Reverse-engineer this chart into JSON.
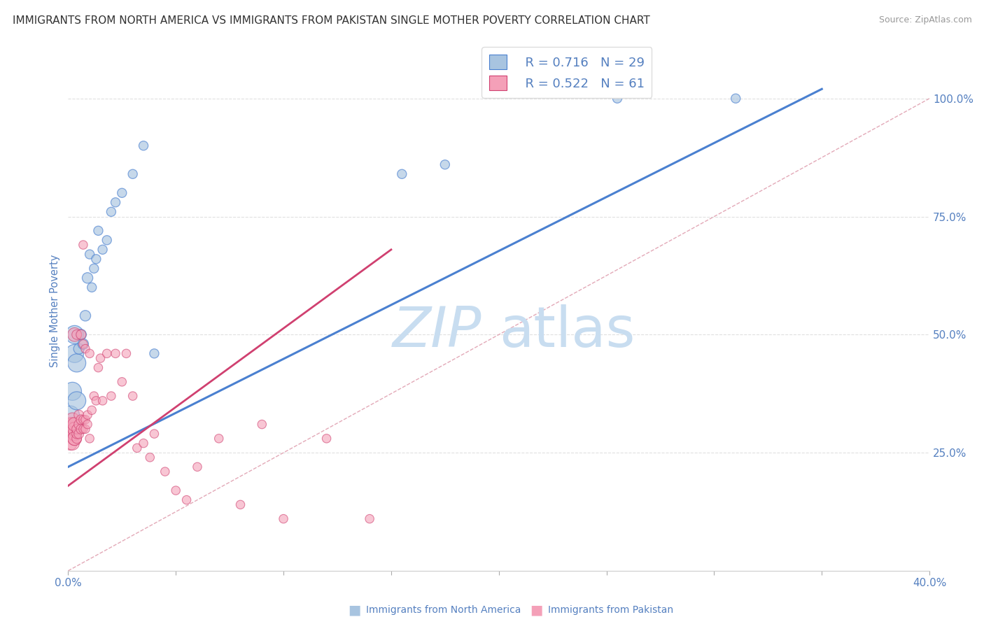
{
  "title": "IMMIGRANTS FROM NORTH AMERICA VS IMMIGRANTS FROM PAKISTAN SINGLE MOTHER POVERTY CORRELATION CHART",
  "source": "Source: ZipAtlas.com",
  "ylabel": "Single Mother Poverty",
  "y_tick_labels": [
    "100.0%",
    "75.0%",
    "50.0%",
    "25.0%"
  ],
  "y_tick_values": [
    1.0,
    0.75,
    0.5,
    0.25
  ],
  "x_lim": [
    0.0,
    0.4
  ],
  "y_lim": [
    0.0,
    1.1
  ],
  "legend_r1": "R = 0.716",
  "legend_n1": "N = 29",
  "legend_r2": "R = 0.522",
  "legend_n2": "N = 61",
  "blue_color": "#a8c4e0",
  "pink_color": "#f4a0b8",
  "blue_line_color": "#4a80d0",
  "pink_line_color": "#d04070",
  "diag_line_color": "#e0a0b0",
  "watermark_zip": "ZIP",
  "watermark_atlas": "atlas",
  "watermark_color_zip": "#c8ddf0",
  "watermark_color_atlas": "#c8ddf0",
  "bg_color": "#ffffff",
  "grid_color": "#e0e0e0",
  "tick_color": "#5580c0",
  "title_color": "#333333",
  "title_fontsize": 11.0,
  "blue_scatter_x": [
    0.001,
    0.001,
    0.002,
    0.003,
    0.003,
    0.004,
    0.004,
    0.005,
    0.006,
    0.007,
    0.008,
    0.009,
    0.01,
    0.011,
    0.012,
    0.013,
    0.014,
    0.016,
    0.018,
    0.02,
    0.022,
    0.025,
    0.03,
    0.035,
    0.04,
    0.155,
    0.175,
    0.255,
    0.31
  ],
  "blue_scatter_y": [
    0.3,
    0.33,
    0.38,
    0.46,
    0.5,
    0.36,
    0.44,
    0.47,
    0.5,
    0.48,
    0.54,
    0.62,
    0.67,
    0.6,
    0.64,
    0.66,
    0.72,
    0.68,
    0.7,
    0.76,
    0.78,
    0.8,
    0.84,
    0.9,
    0.46,
    0.84,
    0.86,
    1.0,
    1.0
  ],
  "pink_scatter_x": [
    0.001,
    0.001,
    0.001,
    0.002,
    0.002,
    0.002,
    0.002,
    0.002,
    0.003,
    0.003,
    0.003,
    0.003,
    0.003,
    0.003,
    0.004,
    0.004,
    0.004,
    0.004,
    0.005,
    0.005,
    0.005,
    0.006,
    0.006,
    0.006,
    0.007,
    0.007,
    0.007,
    0.007,
    0.008,
    0.008,
    0.008,
    0.009,
    0.009,
    0.01,
    0.01,
    0.011,
    0.012,
    0.013,
    0.014,
    0.015,
    0.016,
    0.018,
    0.02,
    0.022,
    0.025,
    0.027,
    0.03,
    0.032,
    0.035,
    0.038,
    0.04,
    0.045,
    0.05,
    0.055,
    0.06,
    0.07,
    0.08,
    0.09,
    0.1,
    0.12,
    0.14
  ],
  "pink_scatter_y": [
    0.29,
    0.31,
    0.27,
    0.29,
    0.31,
    0.27,
    0.3,
    0.32,
    0.28,
    0.29,
    0.3,
    0.31,
    0.28,
    0.5,
    0.28,
    0.29,
    0.3,
    0.5,
    0.29,
    0.31,
    0.33,
    0.3,
    0.32,
    0.5,
    0.3,
    0.32,
    0.48,
    0.69,
    0.3,
    0.32,
    0.47,
    0.31,
    0.33,
    0.28,
    0.46,
    0.34,
    0.37,
    0.36,
    0.43,
    0.45,
    0.36,
    0.46,
    0.37,
    0.46,
    0.4,
    0.46,
    0.37,
    0.26,
    0.27,
    0.24,
    0.29,
    0.21,
    0.17,
    0.15,
    0.22,
    0.28,
    0.14,
    0.31,
    0.11,
    0.28,
    0.11
  ],
  "blue_line_x0": 0.0,
  "blue_line_x1": 0.35,
  "blue_line_y0": 0.22,
  "blue_line_y1": 1.02,
  "pink_line_x0": 0.0,
  "pink_line_x1": 0.15,
  "pink_line_y0": 0.18,
  "pink_line_y1": 0.68
}
